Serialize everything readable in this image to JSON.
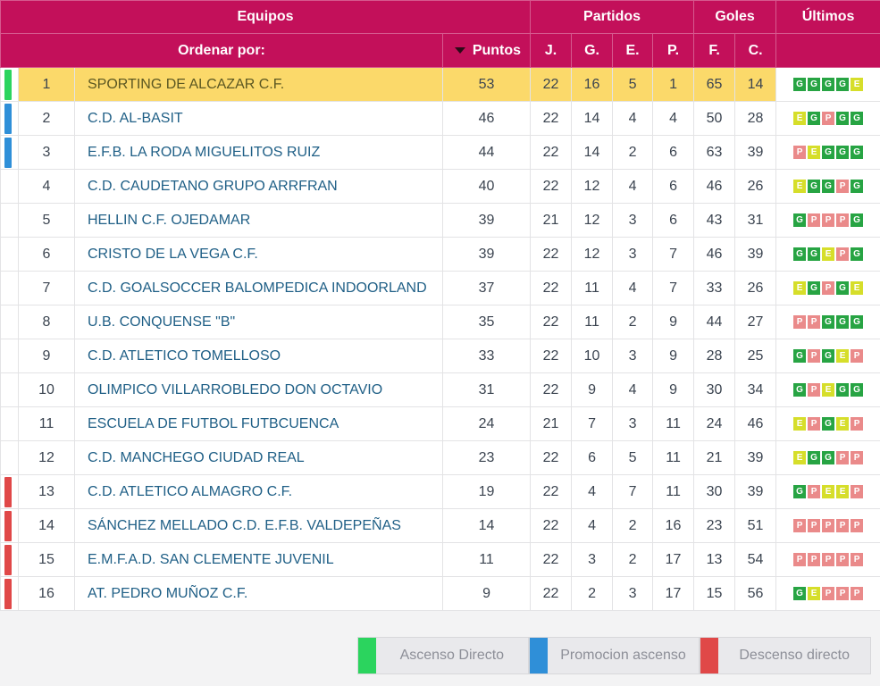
{
  "header": {
    "equipos": "Equipos",
    "partidos": "Partidos",
    "goles": "Goles",
    "ultimos": "Últimos",
    "ordenar": "Ordenar por:",
    "puntos": "Puntos",
    "j": "J.",
    "g": "G.",
    "e": "E.",
    "p": "P.",
    "f": "F.",
    "c": "C."
  },
  "colors": {
    "accent": "#c3105a",
    "ascenso_directo": "#2bd45e",
    "promocion": "#2f8fd8",
    "descenso": "#e04848",
    "highlight": "#fbd96a",
    "win": "#27a443",
    "draw": "#d6de2a",
    "loss": "#ea8a8a"
  },
  "rows": [
    {
      "pos": "1",
      "team": "SPORTING DE ALCAZAR C.F.",
      "pts": "53",
      "j": "22",
      "g": "16",
      "e": "5",
      "p": "1",
      "f": "65",
      "c": "14",
      "zone": "ascenso",
      "last": [
        "G",
        "G",
        "G",
        "G",
        "E"
      ]
    },
    {
      "pos": "2",
      "team": "C.D. AL-BASIT",
      "pts": "46",
      "j": "22",
      "g": "14",
      "e": "4",
      "p": "4",
      "f": "50",
      "c": "28",
      "zone": "promocion",
      "last": [
        "E",
        "G",
        "P",
        "G",
        "G"
      ]
    },
    {
      "pos": "3",
      "team": "E.F.B. LA RODA MIGUELITOS RUIZ",
      "pts": "44",
      "j": "22",
      "g": "14",
      "e": "2",
      "p": "6",
      "f": "63",
      "c": "39",
      "zone": "promocion",
      "last": [
        "P",
        "E",
        "G",
        "G",
        "G"
      ]
    },
    {
      "pos": "4",
      "team": "C.D. CAUDETANO GRUPO ARRFRAN",
      "pts": "40",
      "j": "22",
      "g": "12",
      "e": "4",
      "p": "6",
      "f": "46",
      "c": "26",
      "zone": "",
      "last": [
        "E",
        "G",
        "G",
        "P",
        "G"
      ]
    },
    {
      "pos": "5",
      "team": "HELLIN C.F. OJEDAMAR",
      "pts": "39",
      "j": "21",
      "g": "12",
      "e": "3",
      "p": "6",
      "f": "43",
      "c": "31",
      "zone": "",
      "last": [
        "G",
        "P",
        "P",
        "P",
        "G"
      ]
    },
    {
      "pos": "6",
      "team": "CRISTO DE LA VEGA C.F.",
      "pts": "39",
      "j": "22",
      "g": "12",
      "e": "3",
      "p": "7",
      "f": "46",
      "c": "39",
      "zone": "",
      "last": [
        "G",
        "G",
        "E",
        "P",
        "G"
      ]
    },
    {
      "pos": "7",
      "team": "C.D. GOALSOCCER BALOMPEDICA INDOORLAND",
      "pts": "37",
      "j": "22",
      "g": "11",
      "e": "4",
      "p": "7",
      "f": "33",
      "c": "26",
      "zone": "",
      "last": [
        "E",
        "G",
        "P",
        "G",
        "E"
      ]
    },
    {
      "pos": "8",
      "team": "U.B. CONQUENSE \"B\"",
      "pts": "35",
      "j": "22",
      "g": "11",
      "e": "2",
      "p": "9",
      "f": "44",
      "c": "27",
      "zone": "",
      "last": [
        "P",
        "P",
        "G",
        "G",
        "G"
      ]
    },
    {
      "pos": "9",
      "team": "C.D. ATLETICO TOMELLOSO",
      "pts": "33",
      "j": "22",
      "g": "10",
      "e": "3",
      "p": "9",
      "f": "28",
      "c": "25",
      "zone": "",
      "last": [
        "G",
        "P",
        "G",
        "E",
        "P"
      ]
    },
    {
      "pos": "10",
      "team": "OLIMPICO VILLARROBLEDO DON OCTAVIO",
      "pts": "31",
      "j": "22",
      "g": "9",
      "e": "4",
      "p": "9",
      "f": "30",
      "c": "34",
      "zone": "",
      "last": [
        "G",
        "P",
        "E",
        "G",
        "G"
      ]
    },
    {
      "pos": "11",
      "team": "ESCUELA DE FUTBOL FUTBCUENCA",
      "pts": "24",
      "j": "21",
      "g": "7",
      "e": "3",
      "p": "11",
      "f": "24",
      "c": "46",
      "zone": "",
      "last": [
        "E",
        "P",
        "G",
        "E",
        "P"
      ]
    },
    {
      "pos": "12",
      "team": "C.D. MANCHEGO CIUDAD REAL",
      "pts": "23",
      "j": "22",
      "g": "6",
      "e": "5",
      "p": "11",
      "f": "21",
      "c": "39",
      "zone": "",
      "last": [
        "E",
        "G",
        "G",
        "P",
        "P"
      ]
    },
    {
      "pos": "13",
      "team": "C.D. ATLETICO ALMAGRO C.F.",
      "pts": "19",
      "j": "22",
      "g": "4",
      "e": "7",
      "p": "11",
      "f": "30",
      "c": "39",
      "zone": "descenso",
      "last": [
        "G",
        "P",
        "E",
        "E",
        "P"
      ]
    },
    {
      "pos": "14",
      "team": "SÁNCHEZ MELLADO C.D. E.F.B. VALDEPEÑAS",
      "pts": "14",
      "j": "22",
      "g": "4",
      "e": "2",
      "p": "16",
      "f": "23",
      "c": "51",
      "zone": "descenso",
      "last": [
        "P",
        "P",
        "P",
        "P",
        "P"
      ]
    },
    {
      "pos": "15",
      "team": "E.M.F.A.D. SAN CLEMENTE JUVENIL",
      "pts": "11",
      "j": "22",
      "g": "3",
      "e": "2",
      "p": "17",
      "f": "13",
      "c": "54",
      "zone": "descenso",
      "last": [
        "P",
        "P",
        "P",
        "P",
        "P"
      ]
    },
    {
      "pos": "16",
      "team": "AT. PEDRO MUÑOZ C.F.",
      "pts": "9",
      "j": "22",
      "g": "2",
      "e": "3",
      "p": "17",
      "f": "15",
      "c": "56",
      "zone": "descenso",
      "last": [
        "G",
        "E",
        "P",
        "P",
        "P"
      ]
    }
  ],
  "highlighted_pos": "1",
  "legend": [
    {
      "label": "Ascenso Directo",
      "zone": "ascenso"
    },
    {
      "label": "Promocion ascenso",
      "zone": "promocion"
    },
    {
      "label": "Descenso directo",
      "zone": "descenso"
    }
  ]
}
